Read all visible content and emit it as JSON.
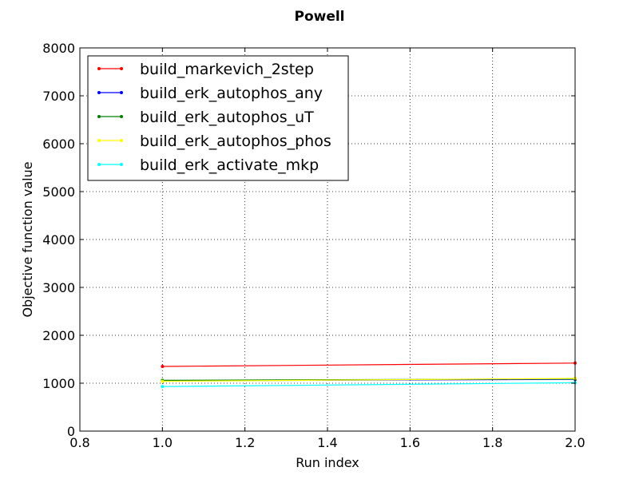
{
  "chart_data": {
    "type": "line",
    "title": "Powell",
    "xlabel": "Run index",
    "ylabel": "Objective function value",
    "xlim": [
      0.8,
      2.0
    ],
    "ylim": [
      0,
      8000
    ],
    "x_ticks": [
      "0.8",
      "1.0",
      "1.2",
      "1.4",
      "1.6",
      "1.8",
      "2.0"
    ],
    "y_ticks": [
      "0",
      "1000",
      "2000",
      "3000",
      "4000",
      "5000",
      "6000",
      "7000",
      "8000"
    ],
    "grid": true,
    "legend_position": "top-left",
    "x": [
      1,
      2
    ],
    "series": [
      {
        "name": "build_markevich_2step",
        "color": "#ff0000",
        "values": [
          1350,
          1420
        ]
      },
      {
        "name": "build_erk_autophos_any",
        "color": "#0000ff",
        "values": [
          1050,
          1080
        ]
      },
      {
        "name": "build_erk_autophos_uT",
        "color": "#008000",
        "values": [
          1060,
          1090
        ]
      },
      {
        "name": "build_erk_autophos_phos",
        "color": "#ffff00",
        "values": [
          1040,
          1100
        ]
      },
      {
        "name": "build_erk_activate_mkp",
        "color": "#00ffff",
        "values": [
          930,
          1010
        ]
      }
    ]
  }
}
